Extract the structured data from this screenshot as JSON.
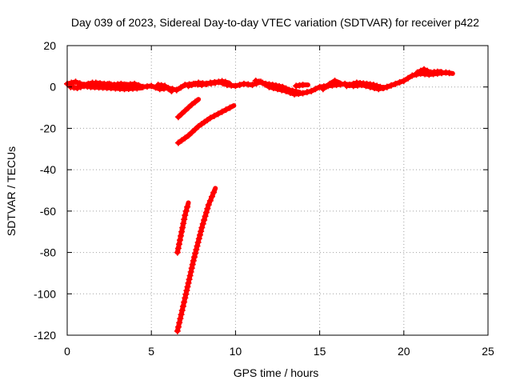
{
  "chart_data": {
    "type": "scatter",
    "title": "Day 039 of 2023, Sidereal Day-to-day VTEC variation (SDTVAR) for receiver p422",
    "xlabel": "GPS time / hours",
    "ylabel": "SDTVAR / TECUs",
    "xlim": [
      0,
      25
    ],
    "ylim": [
      -120,
      20
    ],
    "xticks": [
      0,
      5,
      10,
      15,
      20,
      25
    ],
    "yticks": [
      20,
      0,
      -20,
      -40,
      -60,
      -80,
      -100,
      -120
    ],
    "grid": true,
    "series_color": "#ff0000",
    "series": [
      {
        "name": "main-trace",
        "points": [
          [
            0,
            1.5
          ],
          [
            0.5,
            2.5
          ],
          [
            1,
            1
          ],
          [
            1.5,
            2
          ],
          [
            2,
            0.5
          ],
          [
            2.5,
            1.5
          ],
          [
            3,
            0
          ],
          [
            3.5,
            1
          ],
          [
            4,
            1.5
          ],
          [
            4.5,
            0
          ],
          [
            5,
            0.5
          ],
          [
            5.5,
            -1
          ],
          [
            6,
            -0.5
          ],
          [
            6.5,
            -1.5
          ],
          [
            7,
            1
          ],
          [
            7.5,
            1.5
          ],
          [
            8,
            1
          ],
          [
            8.5,
            2
          ],
          [
            9,
            2.5
          ],
          [
            9.5,
            1
          ],
          [
            10,
            0.5
          ],
          [
            10.5,
            1.5
          ],
          [
            11,
            1
          ],
          [
            11.5,
            2.5
          ],
          [
            12,
            0
          ],
          [
            12.5,
            -1
          ],
          [
            13,
            -2
          ],
          [
            13.5,
            -3.5
          ],
          [
            14,
            -3
          ],
          [
            14.5,
            -2
          ],
          [
            15,
            0
          ],
          [
            15.5,
            0.5
          ],
          [
            16,
            1
          ],
          [
            16.5,
            1.5
          ],
          [
            17,
            0.5
          ],
          [
            17.5,
            1
          ],
          [
            18,
            0
          ],
          [
            18.5,
            -1
          ],
          [
            19,
            0
          ],
          [
            19.5,
            1.5
          ],
          [
            20,
            3
          ],
          [
            20.5,
            5.5
          ],
          [
            21,
            6.5
          ],
          [
            21.5,
            6
          ],
          [
            22,
            6.5
          ],
          [
            22.5,
            7
          ],
          [
            22.9,
            6.5
          ]
        ]
      },
      {
        "name": "blob-a",
        "points": [
          [
            1.2,
            1
          ],
          [
            1.7,
            2
          ],
          [
            2.2,
            1.5
          ],
          [
            2.8,
            1
          ],
          [
            3.2,
            1.5
          ],
          [
            3.8,
            0.5
          ],
          [
            4.2,
            1
          ]
        ]
      },
      {
        "name": "blob-b",
        "points": [
          [
            0.2,
            0
          ],
          [
            0.6,
            -0.5
          ],
          [
            1.0,
            0.5
          ],
          [
            1.4,
            0
          ],
          [
            2.6,
            -0.5
          ],
          [
            3.4,
            -1
          ],
          [
            4.4,
            -0.5
          ]
        ]
      },
      {
        "name": "blob-c",
        "points": [
          [
            5.4,
            1
          ],
          [
            5.8,
            0.5
          ],
          [
            6.2,
            -2
          ],
          [
            5.9,
            0
          ]
        ]
      },
      {
        "name": "blob-d",
        "points": [
          [
            7.2,
            0.5
          ],
          [
            7.8,
            2
          ],
          [
            8.3,
            1.5
          ],
          [
            8.8,
            2
          ],
          [
            9.2,
            2.8
          ],
          [
            9.6,
            2
          ]
        ]
      },
      {
        "name": "blob-e",
        "points": [
          [
            11.2,
            3
          ],
          [
            11.8,
            1.5
          ],
          [
            12.2,
            1
          ],
          [
            12.8,
            0
          ],
          [
            13.2,
            -1.5
          ],
          [
            13.8,
            -2.5
          ]
        ]
      },
      {
        "name": "blob-f",
        "points": [
          [
            13.6,
            0.5
          ],
          [
            14,
            1
          ],
          [
            14.3,
            1
          ]
        ]
      },
      {
        "name": "blob-g",
        "points": [
          [
            15.2,
            -1
          ],
          [
            15.6,
            1.5
          ],
          [
            15.9,
            3
          ],
          [
            16.2,
            2
          ]
        ]
      },
      {
        "name": "blob-h",
        "points": [
          [
            16.6,
            0.5
          ],
          [
            17.2,
            2
          ],
          [
            17.8,
            1.5
          ],
          [
            18.2,
            1
          ],
          [
            18.8,
            -0.5
          ],
          [
            19.2,
            0.5
          ]
        ]
      },
      {
        "name": "blob-i",
        "points": [
          [
            20.8,
            7
          ],
          [
            21.2,
            8.5
          ],
          [
            21.6,
            7
          ],
          [
            22.2,
            7.5
          ]
        ]
      },
      {
        "name": "short-rise-1",
        "points": [
          [
            6.6,
            -14.5
          ],
          [
            7,
            -11.5
          ],
          [
            7.4,
            -8.5
          ],
          [
            7.8,
            -6
          ]
        ]
      },
      {
        "name": "curve-rise-2",
        "points": [
          [
            6.6,
            -27
          ],
          [
            7.2,
            -23.5
          ],
          [
            7.8,
            -19
          ],
          [
            8.5,
            -15
          ],
          [
            9.2,
            -12
          ],
          [
            9.9,
            -9
          ]
        ]
      },
      {
        "name": "steep-rise-3",
        "points": [
          [
            6.55,
            -80
          ],
          [
            6.75,
            -72
          ],
          [
            7.0,
            -62
          ],
          [
            7.2,
            -56
          ]
        ]
      },
      {
        "name": "steep-rise-4",
        "points": [
          [
            6.55,
            -118
          ],
          [
            7.0,
            -102
          ],
          [
            7.5,
            -84
          ],
          [
            8.0,
            -68
          ],
          [
            8.4,
            -57
          ],
          [
            8.8,
            -49
          ]
        ]
      }
    ]
  }
}
